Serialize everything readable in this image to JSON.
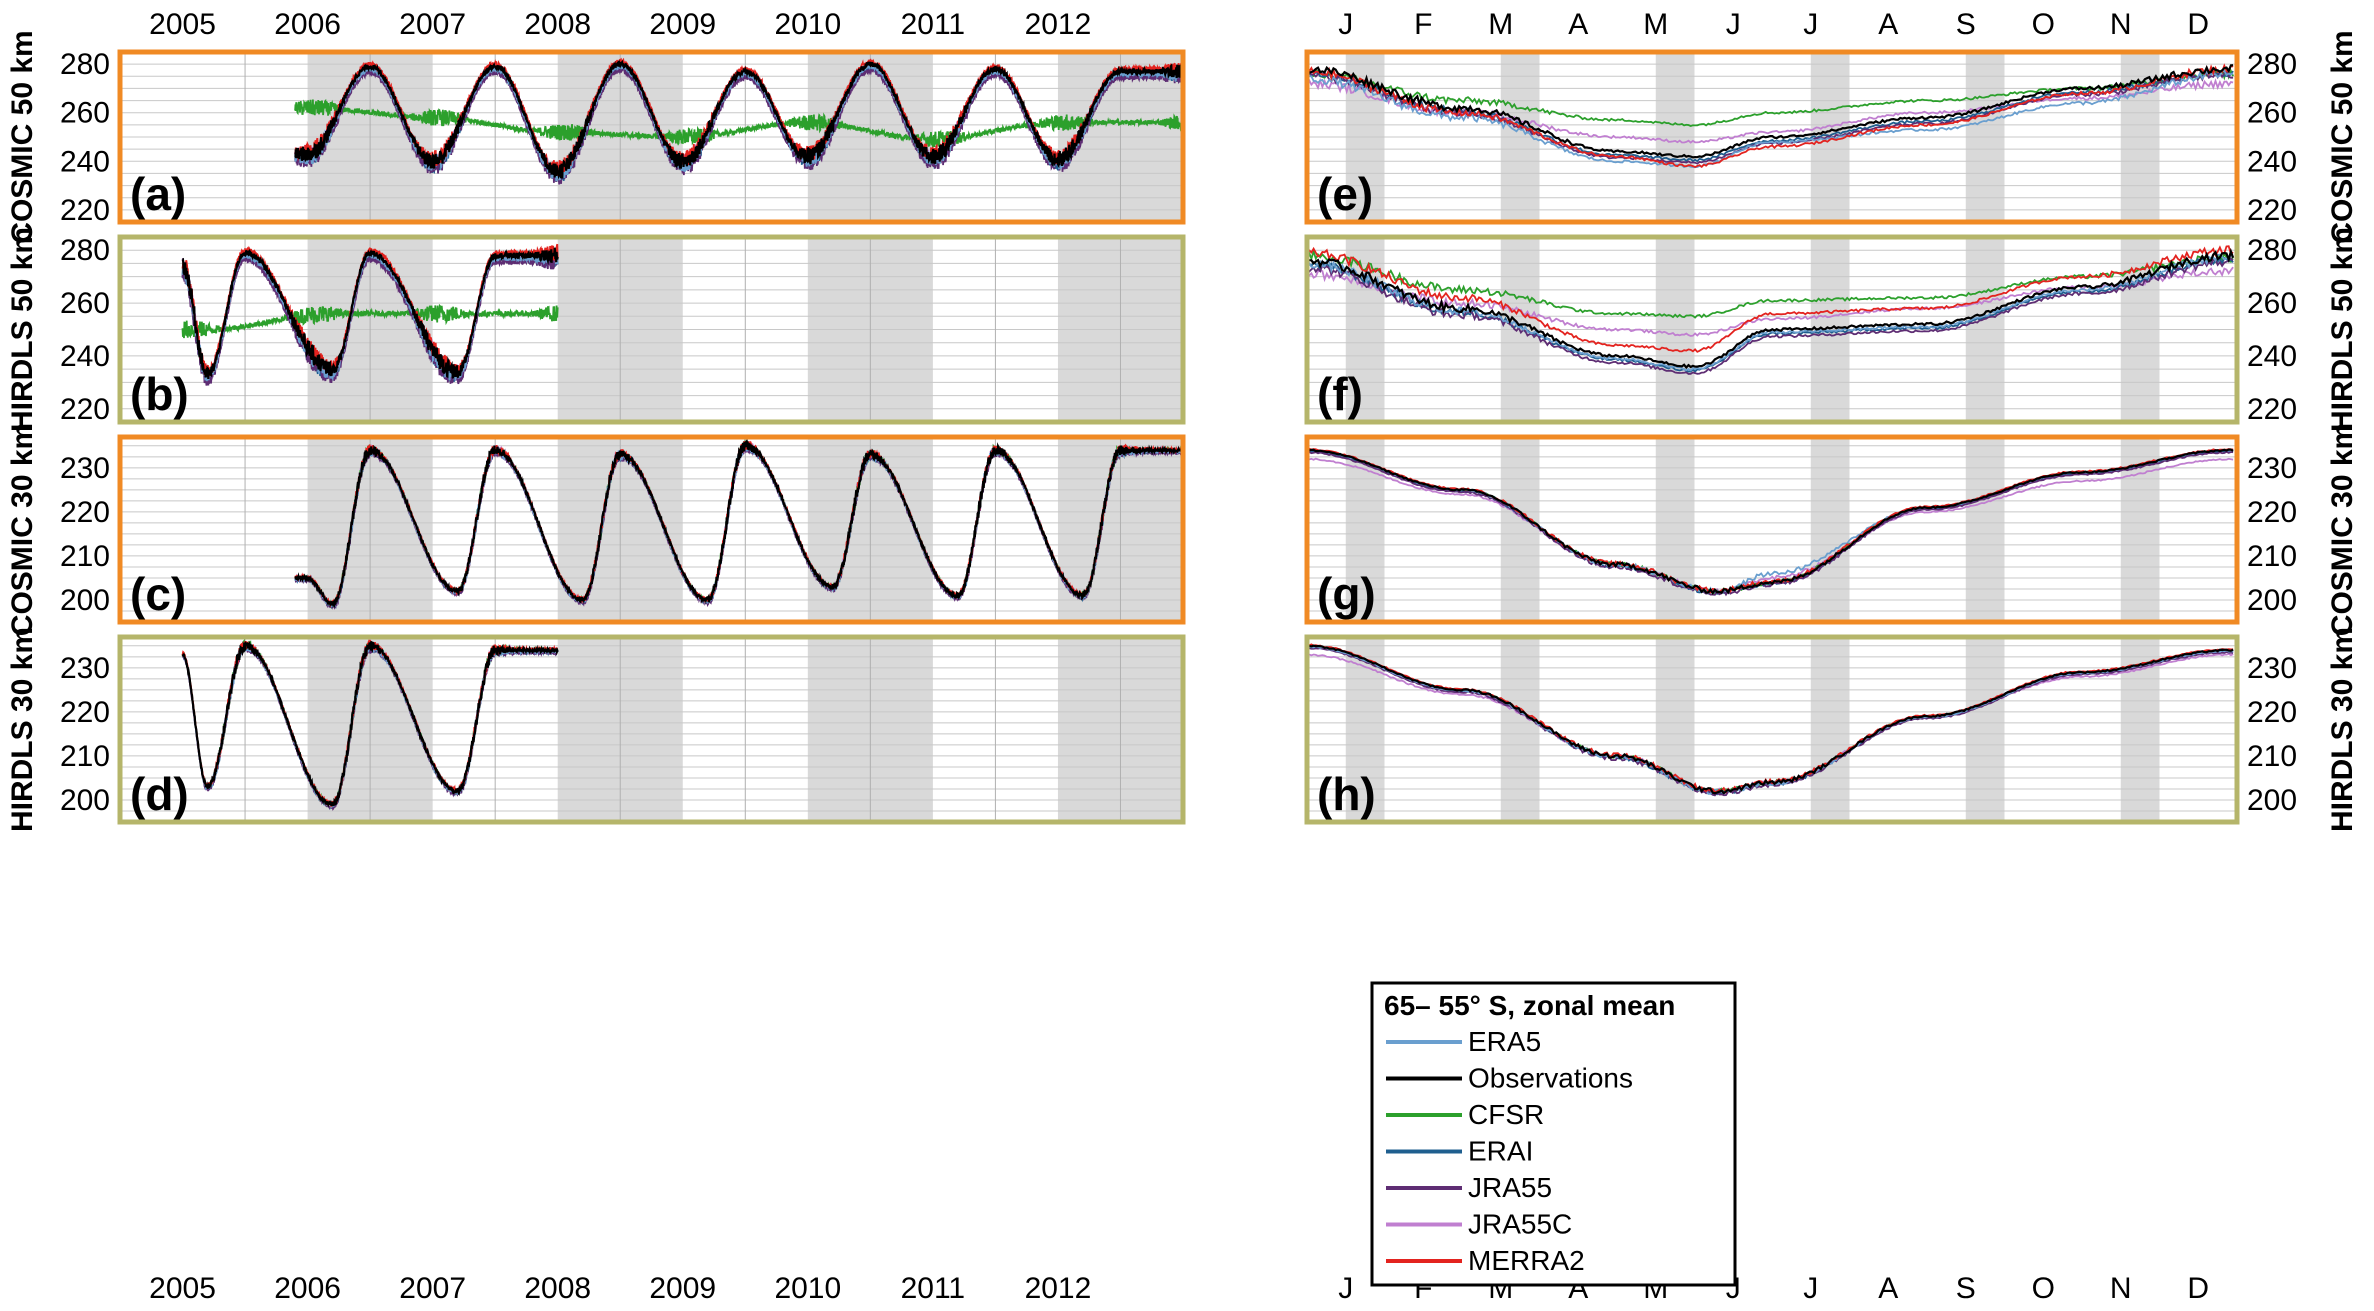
{
  "figure": {
    "top_year_labels": [
      "2005",
      "2006",
      "2007",
      "2008",
      "2009",
      "2010",
      "2011",
      "2012"
    ],
    "bottom_year_labels": [
      "2005",
      "2006",
      "2007",
      "2008",
      "2009",
      "2010",
      "2011",
      "2012"
    ],
    "month_labels": [
      "J",
      "F",
      "M",
      "A",
      "M",
      "J",
      "J",
      "A",
      "S",
      "O",
      "N",
      "D"
    ],
    "legend": {
      "title": "65– 55° S, zonal mean",
      "entries": [
        {
          "name": "ERA5",
          "color": "#6a9fcf"
        },
        {
          "name": "Observations",
          "color": "#000000"
        },
        {
          "name": "CFSR",
          "color": "#2ca02c"
        },
        {
          "name": "ERAI",
          "color": "#1f5f8f"
        },
        {
          "name": "JRA55",
          "color": "#5e2d73"
        },
        {
          "name": "JRA55C",
          "color": "#c07fd0"
        },
        {
          "name": "MERRA2",
          "color": "#e3231f"
        }
      ]
    },
    "colors": {
      "cosmic_frame": "#f08a24",
      "hirdls_frame": "#b5b56a",
      "shade": "#d9d9d9"
    }
  },
  "chart_data": [
    {
      "panel": "(a)",
      "type": "line",
      "ylabel": "COSMIC 50 km",
      "frame": "cosmic",
      "ylim": [
        215,
        285
      ],
      "yticks": [
        220,
        240,
        260,
        280
      ],
      "x_range": [
        "2004-07-01",
        "2012-12-31"
      ],
      "data_start": 2005.9,
      "data_end": 2013.0,
      "series_points": {
        "Observations": [
          [
            2006.0,
            243
          ],
          [
            2006.5,
            279
          ],
          [
            2007.0,
            240
          ],
          [
            2007.5,
            279
          ],
          [
            2008.0,
            236
          ],
          [
            2008.5,
            280
          ],
          [
            2009.0,
            240
          ],
          [
            2009.5,
            277
          ],
          [
            2010.0,
            242
          ],
          [
            2010.5,
            280
          ],
          [
            2011.0,
            242
          ],
          [
            2011.5,
            278
          ],
          [
            2012.0,
            241
          ],
          [
            2012.5,
            277
          ]
        ],
        "CFSR": [
          [
            2006.0,
            262
          ],
          [
            2007.0,
            258
          ],
          [
            2008.0,
            252
          ],
          [
            2009.0,
            250
          ],
          [
            2010.0,
            256
          ],
          [
            2011.0,
            249
          ],
          [
            2012.0,
            256
          ]
        ]
      }
    },
    {
      "panel": "(b)",
      "type": "line",
      "ylabel": "HIRDLS 50 km",
      "frame": "hirdls",
      "ylim": [
        215,
        285
      ],
      "yticks": [
        220,
        240,
        260,
        280
      ],
      "data_start": 2005.0,
      "data_end": 2008.0,
      "series_points": {
        "Observations": [
          [
            2005.0,
            274
          ],
          [
            2005.2,
            233
          ],
          [
            2005.5,
            279
          ],
          [
            2006.2,
            235
          ],
          [
            2006.5,
            279
          ],
          [
            2007.2,
            234
          ],
          [
            2007.5,
            278
          ]
        ],
        "CFSR": [
          [
            2005.2,
            250
          ],
          [
            2006.2,
            256
          ],
          [
            2007.2,
            256
          ]
        ]
      }
    },
    {
      "panel": "(c)",
      "type": "line",
      "ylabel": "COSMIC 30 km",
      "frame": "cosmic",
      "ylim": [
        195,
        237
      ],
      "yticks": [
        200,
        210,
        220,
        230
      ],
      "data_start": 2005.9,
      "data_end": 2013.0,
      "series_points": {
        "Observations": [
          [
            2006.0,
            205
          ],
          [
            2006.2,
            199
          ],
          [
            2006.5,
            234
          ],
          [
            2007.2,
            202
          ],
          [
            2007.5,
            234
          ],
          [
            2008.2,
            200
          ],
          [
            2008.5,
            233
          ],
          [
            2009.2,
            200
          ],
          [
            2009.5,
            235
          ],
          [
            2010.2,
            203
          ],
          [
            2010.5,
            233
          ],
          [
            2011.2,
            201
          ],
          [
            2011.5,
            234
          ],
          [
            2012.2,
            201
          ],
          [
            2012.5,
            234
          ]
        ]
      }
    },
    {
      "panel": "(d)",
      "type": "line",
      "ylabel": "HIRDLS 30 km",
      "frame": "hirdls",
      "ylim": [
        195,
        237
      ],
      "yticks": [
        200,
        210,
        220,
        230
      ],
      "data_start": 2005.0,
      "data_end": 2008.0,
      "series_points": {
        "Observations": [
          [
            2005.0,
            233
          ],
          [
            2005.2,
            203
          ],
          [
            2005.5,
            235
          ],
          [
            2006.2,
            199
          ],
          [
            2006.5,
            235
          ],
          [
            2007.2,
            202
          ],
          [
            2007.5,
            234
          ]
        ]
      }
    },
    {
      "panel": "(e)",
      "type": "line",
      "ylabel": "COSMIC 50 km",
      "frame": "cosmic",
      "ylim": [
        215,
        285
      ],
      "yticks": [
        220,
        240,
        260,
        280
      ],
      "x": "month",
      "series_points": {
        "Observations": [
          [
            0,
            278
          ],
          [
            2,
            262
          ],
          [
            4,
            244
          ],
          [
            5,
            242
          ],
          [
            6,
            250
          ],
          [
            8,
            258
          ],
          [
            10,
            270
          ],
          [
            11.9,
            278
          ]
        ],
        "CFSR": [
          [
            0,
            276
          ],
          [
            2,
            265
          ],
          [
            4,
            257
          ],
          [
            5,
            255
          ],
          [
            6,
            260
          ],
          [
            8,
            265
          ],
          [
            10,
            270
          ],
          [
            11.9,
            276
          ]
        ],
        "JRA55C": [
          [
            0,
            272
          ],
          [
            2,
            260
          ],
          [
            4,
            250
          ],
          [
            5,
            248
          ],
          [
            6,
            252
          ],
          [
            8,
            260
          ],
          [
            10,
            266
          ],
          [
            11.9,
            272
          ]
        ],
        "MERRA2": [
          [
            0,
            277
          ],
          [
            2,
            260
          ],
          [
            4,
            242
          ],
          [
            5,
            238
          ],
          [
            6,
            246
          ],
          [
            8,
            255
          ],
          [
            10,
            268
          ],
          [
            11.9,
            278
          ]
        ],
        "ERA5": [
          [
            0,
            274
          ],
          [
            2,
            258
          ],
          [
            4,
            240
          ],
          [
            5,
            238
          ],
          [
            6,
            248
          ],
          [
            8,
            253
          ],
          [
            10,
            264
          ],
          [
            11.9,
            276
          ]
        ]
      }
    },
    {
      "panel": "(f)",
      "type": "line",
      "ylabel": "HIRDLS 50 km",
      "frame": "hirdls",
      "ylim": [
        215,
        285
      ],
      "yticks": [
        220,
        240,
        260,
        280
      ],
      "x": "month",
      "series_points": {
        "Observations": [
          [
            0,
            276
          ],
          [
            2,
            258
          ],
          [
            4,
            240
          ],
          [
            5,
            236
          ],
          [
            6,
            250
          ],
          [
            8,
            252
          ],
          [
            10,
            266
          ],
          [
            11.9,
            278
          ]
        ],
        "CFSR": [
          [
            0,
            278
          ],
          [
            2,
            265
          ],
          [
            4,
            256
          ],
          [
            5,
            255
          ],
          [
            6,
            261
          ],
          [
            8,
            262
          ],
          [
            10,
            270
          ],
          [
            11.9,
            277
          ]
        ],
        "JRA55C": [
          [
            0,
            271
          ],
          [
            2,
            260
          ],
          [
            4,
            250
          ],
          [
            5,
            248
          ],
          [
            6,
            254
          ],
          [
            8,
            258
          ],
          [
            10,
            266
          ],
          [
            11.9,
            272
          ]
        ],
        "MERRA2": [
          [
            0,
            279
          ],
          [
            2,
            262
          ],
          [
            4,
            244
          ],
          [
            5,
            242
          ],
          [
            6,
            256
          ],
          [
            8,
            258
          ],
          [
            10,
            270
          ],
          [
            11.9,
            280
          ]
        ]
      }
    },
    {
      "panel": "(g)",
      "type": "line",
      "ylabel": "COSMIC 30 km",
      "frame": "cosmic",
      "ylim": [
        195,
        237
      ],
      "yticks": [
        200,
        210,
        220,
        230
      ],
      "x": "month",
      "series_points": {
        "Observations": [
          [
            0,
            234
          ],
          [
            2,
            225
          ],
          [
            4,
            208
          ],
          [
            5.3,
            202
          ],
          [
            6,
            204
          ],
          [
            8,
            221
          ],
          [
            10,
            229
          ],
          [
            11.9,
            234
          ]
        ],
        "JRA55C": [
          [
            0,
            232
          ],
          [
            2,
            224
          ],
          [
            4,
            208
          ],
          [
            5.3,
            202
          ],
          [
            6,
            205
          ],
          [
            8,
            220
          ],
          [
            10,
            227
          ],
          [
            11.9,
            232
          ]
        ],
        "ERA5": [
          [
            0,
            234
          ],
          [
            2,
            225
          ],
          [
            4,
            208
          ],
          [
            5.3,
            202
          ],
          [
            6,
            206
          ],
          [
            8,
            221
          ],
          [
            10,
            229
          ],
          [
            11.9,
            234
          ]
        ]
      }
    },
    {
      "panel": "(h)",
      "type": "line",
      "ylabel": "HIRDLS 30 km",
      "frame": "hirdls",
      "ylim": [
        195,
        237
      ],
      "yticks": [
        200,
        210,
        220,
        230
      ],
      "x": "month",
      "series_points": {
        "Observations": [
          [
            0,
            235
          ],
          [
            2,
            225
          ],
          [
            4,
            210
          ],
          [
            5.3,
            202
          ],
          [
            6,
            204
          ],
          [
            8,
            219
          ],
          [
            10,
            229
          ],
          [
            11.9,
            234
          ]
        ],
        "JRA55C": [
          [
            0,
            233
          ],
          [
            2,
            224
          ],
          [
            4,
            210
          ],
          [
            5.3,
            202
          ],
          [
            6,
            204
          ],
          [
            8,
            219
          ],
          [
            10,
            228
          ],
          [
            11.9,
            233
          ]
        ]
      }
    }
  ]
}
